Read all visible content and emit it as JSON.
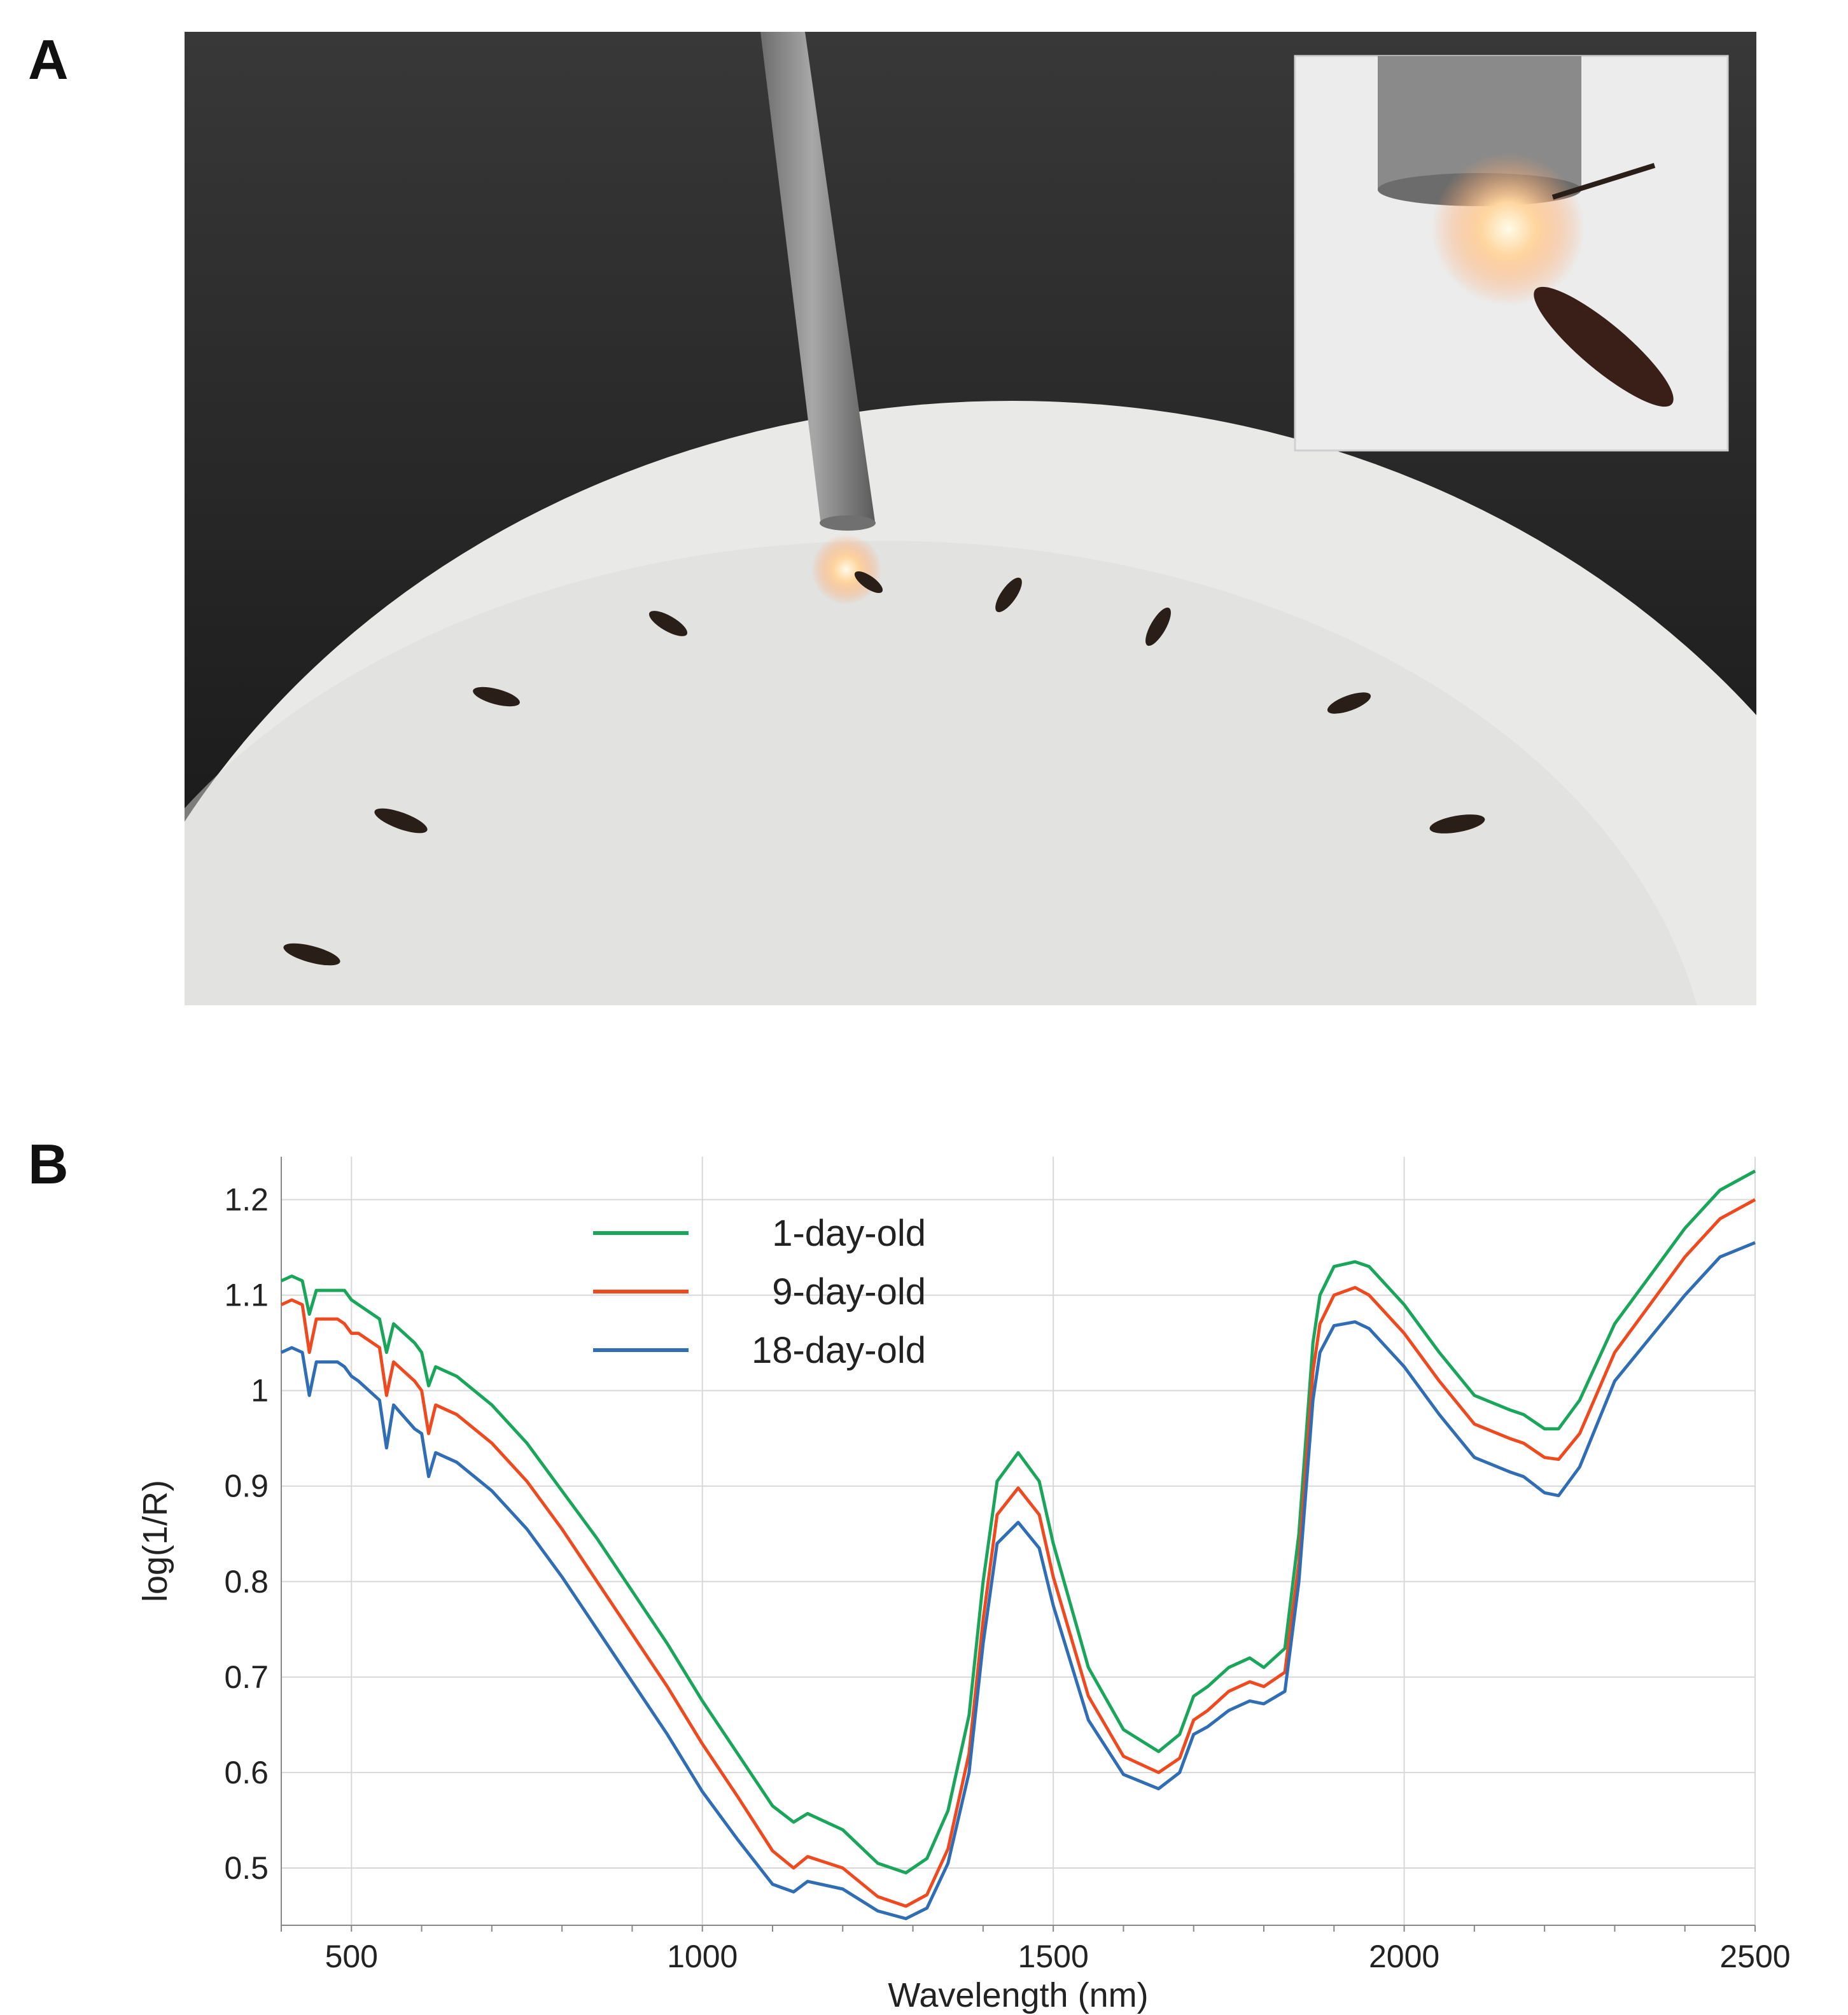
{
  "panel_labels": {
    "a": "A",
    "b": "B"
  },
  "photo": {
    "description_icon": "mosquito-specimens-under-nir-probe-photo",
    "background_color": "#2a2a2a",
    "dish_color": "#ececec",
    "inset_visible": true
  },
  "chart_data": {
    "type": "line",
    "title": "",
    "xlabel": "Wavelength (nm)",
    "ylabel": "log(1/R)",
    "xlim": [
      400,
      2500
    ],
    "ylim": [
      0.44,
      1.245
    ],
    "xticks": [
      500,
      1000,
      1500,
      2000,
      2500
    ],
    "yticks": [
      0.5,
      0.6,
      0.7,
      0.8,
      0.9,
      1,
      1.1,
      1.2
    ],
    "ytick_labels": [
      "0.5",
      "0.6",
      "0.7",
      "0.8",
      "0.9",
      "1",
      "1.1",
      "1.2"
    ],
    "grid": true,
    "legend_position": "top-left",
    "x": [
      400,
      415,
      430,
      440,
      450,
      470,
      480,
      490,
      500,
      510,
      540,
      550,
      560,
      590,
      600,
      610,
      620,
      650,
      700,
      750,
      800,
      850,
      900,
      950,
      1000,
      1050,
      1100,
      1130,
      1150,
      1200,
      1250,
      1290,
      1320,
      1350,
      1380,
      1400,
      1420,
      1450,
      1480,
      1500,
      1550,
      1600,
      1650,
      1680,
      1700,
      1720,
      1750,
      1780,
      1800,
      1830,
      1850,
      1870,
      1880,
      1900,
      1930,
      1950,
      2000,
      2050,
      2100,
      2150,
      2170,
      2200,
      2220,
      2250,
      2300,
      2350,
      2400,
      2450,
      2500
    ],
    "series": [
      {
        "name": "1-day-old",
        "color": "#1aa65a",
        "values": [
          1.115,
          1.12,
          1.115,
          1.08,
          1.105,
          1.105,
          1.105,
          1.105,
          1.095,
          1.09,
          1.075,
          1.04,
          1.07,
          1.05,
          1.04,
          1.005,
          1.025,
          1.015,
          0.985,
          0.945,
          0.895,
          0.845,
          0.79,
          0.735,
          0.675,
          0.62,
          0.565,
          0.548,
          0.557,
          0.54,
          0.505,
          0.495,
          0.51,
          0.56,
          0.66,
          0.8,
          0.905,
          0.935,
          0.905,
          0.84,
          0.71,
          0.645,
          0.622,
          0.64,
          0.68,
          0.69,
          0.71,
          0.72,
          0.71,
          0.73,
          0.85,
          1.05,
          1.1,
          1.13,
          1.135,
          1.13,
          1.09,
          1.04,
          0.995,
          0.98,
          0.975,
          0.96,
          0.96,
          0.99,
          1.07,
          1.12,
          1.17,
          1.21,
          1.23
        ]
      },
      {
        "name": "9-day-old",
        "color": "#ef4a1f",
        "values": [
          1.09,
          1.095,
          1.09,
          1.04,
          1.075,
          1.075,
          1.075,
          1.07,
          1.06,
          1.06,
          1.045,
          0.995,
          1.03,
          1.01,
          1.0,
          0.955,
          0.985,
          0.975,
          0.945,
          0.905,
          0.855,
          0.8,
          0.745,
          0.69,
          0.63,
          0.575,
          0.518,
          0.5,
          0.512,
          0.5,
          0.47,
          0.46,
          0.472,
          0.52,
          0.62,
          0.76,
          0.87,
          0.898,
          0.87,
          0.805,
          0.68,
          0.617,
          0.6,
          0.615,
          0.655,
          0.665,
          0.685,
          0.695,
          0.69,
          0.705,
          0.82,
          1.02,
          1.07,
          1.1,
          1.108,
          1.1,
          1.06,
          1.01,
          0.965,
          0.95,
          0.945,
          0.93,
          0.928,
          0.955,
          1.04,
          1.09,
          1.14,
          1.18,
          1.2
        ]
      },
      {
        "name": "18-day-old",
        "color": "#2f6db5",
        "values": [
          1.04,
          1.045,
          1.04,
          0.995,
          1.03,
          1.03,
          1.03,
          1.025,
          1.015,
          1.01,
          0.99,
          0.94,
          0.985,
          0.96,
          0.955,
          0.91,
          0.935,
          0.925,
          0.895,
          0.855,
          0.805,
          0.75,
          0.695,
          0.64,
          0.58,
          0.53,
          0.483,
          0.475,
          0.486,
          0.478,
          0.455,
          0.447,
          0.458,
          0.505,
          0.6,
          0.735,
          0.84,
          0.862,
          0.835,
          0.775,
          0.655,
          0.598,
          0.583,
          0.6,
          0.64,
          0.648,
          0.665,
          0.675,
          0.672,
          0.685,
          0.8,
          0.99,
          1.04,
          1.068,
          1.072,
          1.065,
          1.025,
          0.975,
          0.93,
          0.915,
          0.91,
          0.893,
          0.89,
          0.92,
          1.01,
          1.055,
          1.1,
          1.14,
          1.155
        ]
      }
    ]
  }
}
